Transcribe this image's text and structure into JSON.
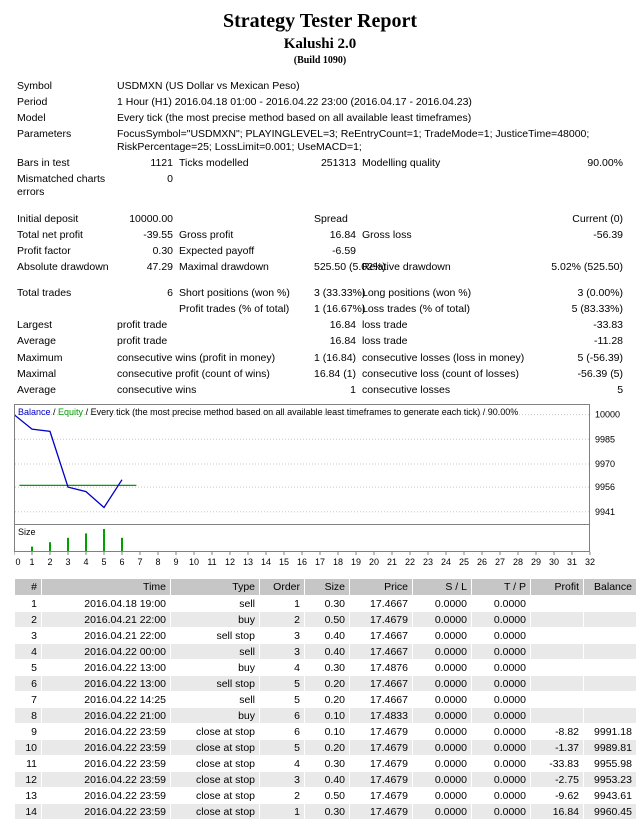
{
  "header": {
    "title": "Strategy Tester Report",
    "expert": "Kalushi 2.0",
    "build": "(Build 1090)"
  },
  "summary": {
    "rows": [
      {
        "cells": [
          {
            "t": "Symbol",
            "n": "symbol-label"
          },
          {
            "t": "USDMXN (US Dollar vs Mexican Peso)",
            "span": 5,
            "wrap": true,
            "n": "symbol-value"
          }
        ]
      },
      {
        "cells": [
          {
            "t": "Period",
            "n": "period-label"
          },
          {
            "t": "1 Hour (H1) 2016.04.18 01:00 - 2016.04.22 23:00 (2016.04.17 - 2016.04.23)",
            "span": 5,
            "wrap": true,
            "n": "period-value"
          }
        ]
      },
      {
        "cells": [
          {
            "t": "Model",
            "n": "model-label"
          },
          {
            "t": "Every tick (the most precise method based on all available least timeframes)",
            "span": 5,
            "wrap": true,
            "n": "model-value"
          }
        ]
      },
      {
        "cells": [
          {
            "t": "Parameters",
            "n": "parameters-label"
          },
          {
            "t": "FocusSymbol=\"USDMXN\"; PLAYINGLEVEL=3; ReEntryCount=1; TradeMode=1; JusticeTime=48000; RiskPercentage=25; LossLimit=0.001; UseMACD=1;",
            "span": 5,
            "wrap": true,
            "n": "parameters-value"
          }
        ]
      },
      {
        "cells": [
          {
            "t": "Bars in test",
            "n": "bars-in-test-label"
          },
          {
            "t": "1121",
            "a": "r",
            "n": "bars-in-test-value"
          },
          {
            "t": "Ticks modelled",
            "n": "ticks-modelled-label"
          },
          {
            "t": "251313",
            "a": "r",
            "n": "ticks-modelled-value"
          },
          {
            "t": "Modelling quality",
            "n": "modelling-quality-label"
          },
          {
            "t": "90.00%",
            "a": "r",
            "n": "modelling-quality-value"
          }
        ]
      },
      {
        "cells": [
          {
            "t": "Mismatched charts errors",
            "wrap": true,
            "n": "mismatched-errors-label"
          },
          {
            "t": "0",
            "a": "r",
            "n": "mismatched-errors-value"
          },
          {
            "t": "",
            "span": 4
          }
        ]
      },
      {
        "spacer": true
      },
      {
        "cells": [
          {
            "t": "Initial deposit",
            "n": "initial-deposit-label"
          },
          {
            "t": "10000.00",
            "a": "r",
            "n": "initial-deposit-value"
          },
          {
            "t": ""
          },
          {
            "t": "Spread",
            "n": "spread-label"
          },
          {
            "t": "Current (0)",
            "a": "r",
            "span": 2,
            "n": "spread-value"
          }
        ]
      },
      {
        "cells": [
          {
            "t": "Total net profit",
            "n": "total-net-profit-label"
          },
          {
            "t": "-39.55",
            "a": "r",
            "n": "total-net-profit-value"
          },
          {
            "t": "Gross profit",
            "n": "gross-profit-label"
          },
          {
            "t": "16.84",
            "a": "r",
            "n": "gross-profit-value"
          },
          {
            "t": "Gross loss",
            "n": "gross-loss-label"
          },
          {
            "t": "-56.39",
            "a": "r",
            "n": "gross-loss-value"
          }
        ]
      },
      {
        "cells": [
          {
            "t": "Profit factor",
            "n": "profit-factor-label"
          },
          {
            "t": "0.30",
            "a": "r",
            "n": "profit-factor-value"
          },
          {
            "t": "Expected payoff",
            "n": "expected-payoff-label"
          },
          {
            "t": "-6.59",
            "a": "r",
            "n": "expected-payoff-value"
          },
          {
            "t": ""
          },
          {
            "t": "",
            "a": "r"
          }
        ]
      },
      {
        "cells": [
          {
            "t": "Absolute drawdown",
            "n": "absolute-drawdown-label"
          },
          {
            "t": "47.29",
            "a": "r",
            "n": "absolute-drawdown-value"
          },
          {
            "t": "Maximal drawdown",
            "n": "maximal-drawdown-label"
          },
          {
            "t": "525.50 (5.02%)",
            "a": "r",
            "n": "maximal-drawdown-value"
          },
          {
            "t": "Relative drawdown",
            "n": "relative-drawdown-label"
          },
          {
            "t": "5.02% (525.50)",
            "a": "r",
            "n": "relative-drawdown-value"
          }
        ]
      },
      {
        "spacer": true
      },
      {
        "cells": [
          {
            "t": "Total trades",
            "n": "total-trades-label"
          },
          {
            "t": "6",
            "a": "r",
            "n": "total-trades-value"
          },
          {
            "t": "Short positions (won %)",
            "n": "short-positions-label"
          },
          {
            "t": "3 (33.33%)",
            "a": "r",
            "n": "short-positions-value"
          },
          {
            "t": "Long positions (won %)",
            "n": "long-positions-label"
          },
          {
            "t": "3 (0.00%)",
            "a": "r",
            "n": "long-positions-value"
          }
        ]
      },
      {
        "cells": [
          {
            "t": ""
          },
          {
            "t": ""
          },
          {
            "t": "Profit trades (% of total)",
            "n": "profit-trades-label"
          },
          {
            "t": "1 (16.67%)",
            "a": "r",
            "n": "profit-trades-value"
          },
          {
            "t": "Loss trades (% of total)",
            "n": "loss-trades-label"
          },
          {
            "t": "5 (83.33%)",
            "a": "r",
            "n": "loss-trades-value"
          }
        ]
      },
      {
        "cells": [
          {
            "t": "Largest",
            "n": "largest-label"
          },
          {
            "t": "profit trade",
            "span": 2,
            "n": "largest-profit-trade-label"
          },
          {
            "t": "16.84",
            "a": "r",
            "n": "largest-profit-trade-value"
          },
          {
            "t": "loss trade",
            "n": "largest-loss-trade-label"
          },
          {
            "t": "-33.83",
            "a": "r",
            "n": "largest-loss-trade-value"
          }
        ]
      },
      {
        "cells": [
          {
            "t": "Average",
            "n": "average-label"
          },
          {
            "t": "profit trade",
            "span": 2,
            "n": "average-profit-trade-label"
          },
          {
            "t": "16.84",
            "a": "r",
            "n": "average-profit-trade-value"
          },
          {
            "t": "loss trade",
            "n": "average-loss-trade-label"
          },
          {
            "t": "-11.28",
            "a": "r",
            "n": "average-loss-trade-value"
          }
        ]
      },
      {
        "cells": [
          {
            "t": "Maximum",
            "n": "maximum-label"
          },
          {
            "t": "consecutive wins (profit in money)",
            "span": 2,
            "n": "max-consecutive-wins-label"
          },
          {
            "t": "1 (16.84)",
            "a": "r",
            "n": "max-consecutive-wins-value"
          },
          {
            "t": "consecutive losses (loss in money)",
            "n": "max-consecutive-losses-label"
          },
          {
            "t": "5 (-56.39)",
            "a": "r",
            "n": "max-consecutive-losses-value"
          }
        ]
      },
      {
        "cells": [
          {
            "t": "Maximal",
            "n": "maximal-label"
          },
          {
            "t": "consecutive profit (count of wins)",
            "span": 2,
            "n": "maximal-consecutive-profit-label"
          },
          {
            "t": "16.84 (1)",
            "a": "r",
            "n": "maximal-consecutive-profit-value"
          },
          {
            "t": "consecutive loss (count of losses)",
            "n": "maximal-consecutive-loss-label"
          },
          {
            "t": "-56.39 (5)",
            "a": "r",
            "n": "maximal-consecutive-loss-value"
          }
        ]
      },
      {
        "cells": [
          {
            "t": "Average",
            "n": "average2-label"
          },
          {
            "t": "consecutive wins",
            "span": 2,
            "n": "avg-consecutive-wins-label"
          },
          {
            "t": "1",
            "a": "r",
            "n": "avg-consecutive-wins-value"
          },
          {
            "t": "consecutive losses",
            "n": "avg-consecutive-losses-label"
          },
          {
            "t": "5",
            "a": "r",
            "n": "avg-consecutive-losses-value"
          }
        ]
      }
    ]
  },
  "chart_data": {
    "type": "line",
    "legend": {
      "balance_label": "Balance",
      "equity_label": "Equity",
      "description": "Every tick (the most precise method based on all available least timeframes to generate each tick) / 90.00%"
    },
    "balance_color": "#0000C8",
    "equity_color": "#00A000",
    "y_axis": {
      "ticks": [
        10000,
        9985,
        9970,
        9956,
        9941
      ]
    },
    "x_axis": {
      "from": 0,
      "to": 32
    },
    "series": [
      {
        "name": "Balance",
        "points": [
          [
            0,
            10000
          ],
          [
            1,
            9991.18
          ],
          [
            2,
            9989.81
          ],
          [
            3,
            9955.98
          ],
          [
            4,
            9953.23
          ],
          [
            5,
            9943.61
          ],
          [
            6,
            9960.45
          ]
        ]
      },
      {
        "name": "Equity",
        "points": [
          [
            0.3,
            9957
          ],
          [
            6.8,
            9957
          ]
        ]
      }
    ],
    "size_label": "Size",
    "size_bars": [
      {
        "x": 1,
        "lots": 0.1
      },
      {
        "x": 2,
        "lots": 0.2
      },
      {
        "x": 3,
        "lots": 0.3
      },
      {
        "x": 4,
        "lots": 0.4
      },
      {
        "x": 5,
        "lots": 0.5
      },
      {
        "x": 6,
        "lots": 0.3
      }
    ]
  },
  "trades": {
    "columns": [
      "#",
      "Time",
      "Type",
      "Order",
      "Size",
      "Price",
      "S / L",
      "T / P",
      "Profit",
      "Balance"
    ],
    "rows": [
      [
        "1",
        "2016.04.18 19:00",
        "sell",
        "1",
        "0.30",
        "17.4667",
        "0.0000",
        "0.0000",
        "",
        ""
      ],
      [
        "2",
        "2016.04.21 22:00",
        "buy",
        "2",
        "0.50",
        "17.4679",
        "0.0000",
        "0.0000",
        "",
        ""
      ],
      [
        "3",
        "2016.04.21 22:00",
        "sell stop",
        "3",
        "0.40",
        "17.4667",
        "0.0000",
        "0.0000",
        "",
        ""
      ],
      [
        "4",
        "2016.04.22 00:00",
        "sell",
        "3",
        "0.40",
        "17.4667",
        "0.0000",
        "0.0000",
        "",
        ""
      ],
      [
        "5",
        "2016.04.22 13:00",
        "buy",
        "4",
        "0.30",
        "17.4876",
        "0.0000",
        "0.0000",
        "",
        ""
      ],
      [
        "6",
        "2016.04.22 13:00",
        "sell stop",
        "5",
        "0.20",
        "17.4667",
        "0.0000",
        "0.0000",
        "",
        ""
      ],
      [
        "7",
        "2016.04.22 14:25",
        "sell",
        "5",
        "0.20",
        "17.4667",
        "0.0000",
        "0.0000",
        "",
        ""
      ],
      [
        "8",
        "2016.04.22 21:00",
        "buy",
        "6",
        "0.10",
        "17.4833",
        "0.0000",
        "0.0000",
        "",
        ""
      ],
      [
        "9",
        "2016.04.22 23:59",
        "close at stop",
        "6",
        "0.10",
        "17.4679",
        "0.0000",
        "0.0000",
        "-8.82",
        "9991.18"
      ],
      [
        "10",
        "2016.04.22 23:59",
        "close at stop",
        "5",
        "0.20",
        "17.4679",
        "0.0000",
        "0.0000",
        "-1.37",
        "9989.81"
      ],
      [
        "11",
        "2016.04.22 23:59",
        "close at stop",
        "4",
        "0.30",
        "17.4679",
        "0.0000",
        "0.0000",
        "-33.83",
        "9955.98"
      ],
      [
        "12",
        "2016.04.22 23:59",
        "close at stop",
        "3",
        "0.40",
        "17.4679",
        "0.0000",
        "0.0000",
        "-2.75",
        "9953.23"
      ],
      [
        "13",
        "2016.04.22 23:59",
        "close at stop",
        "2",
        "0.50",
        "17.4679",
        "0.0000",
        "0.0000",
        "-9.62",
        "9943.61"
      ],
      [
        "14",
        "2016.04.22 23:59",
        "close at stop",
        "1",
        "0.30",
        "17.4679",
        "0.0000",
        "0.0000",
        "16.84",
        "9960.45"
      ]
    ]
  }
}
